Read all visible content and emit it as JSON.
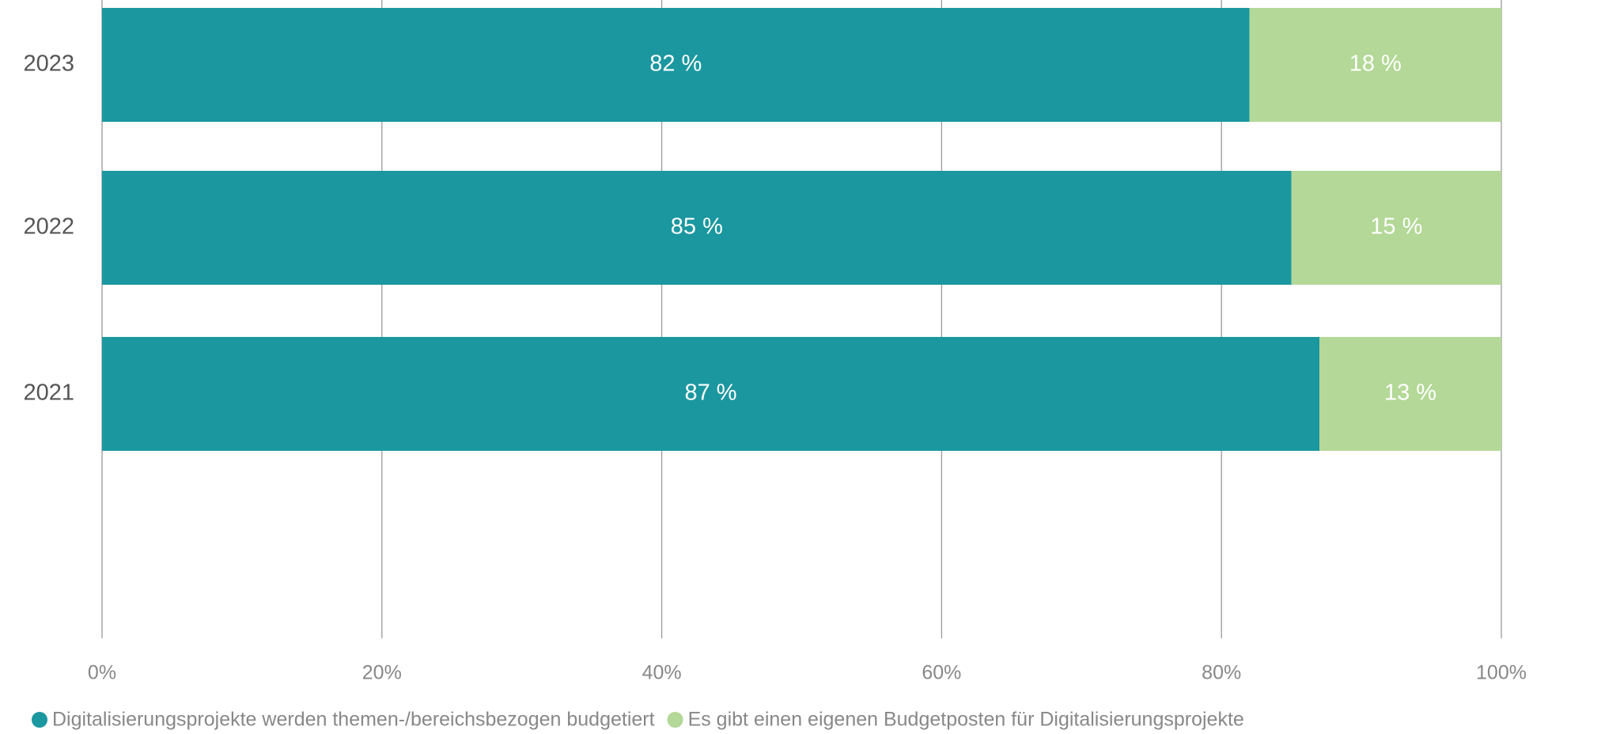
{
  "chart_data": {
    "type": "stacked-barh",
    "categories": [
      "2023",
      "2022",
      "2021"
    ],
    "series": [
      {
        "name": "Digitalisierungsprojekte werden themen-/bereichsbezogen budgetiert",
        "color": "#1b97a0",
        "values": [
          82,
          85,
          87
        ],
        "value_labels": [
          "82 %",
          "85 %",
          "87 %"
        ]
      },
      {
        "name": "Es gibt einen eigenen Budgetposten für Digitalisierungsprojekte",
        "color": "#b3d897",
        "values": [
          18,
          15,
          13
        ],
        "value_labels": [
          "18 %",
          "15 %",
          "13 %"
        ]
      }
    ],
    "xlim": [
      0,
      100
    ],
    "xticks": [
      {
        "value": 0,
        "label": "0%"
      },
      {
        "value": 20,
        "label": "20%"
      },
      {
        "value": 40,
        "label": "40%"
      },
      {
        "value": 60,
        "label": "60%"
      },
      {
        "value": 80,
        "label": "80%"
      },
      {
        "value": 100,
        "label": "100%"
      }
    ],
    "grid": true,
    "legend": "bottom"
  }
}
